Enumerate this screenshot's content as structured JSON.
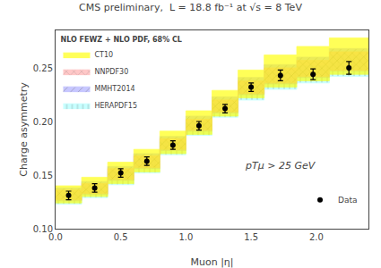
{
  "chart_data": {
    "type": "band",
    "title": "CMS preliminary,  L = 18.8 fb⁻¹ at √s = 8 TeV",
    "xlabel": "Muon |η|",
    "ylabel": "Charge asymmetry",
    "xlim": [
      0,
      2.4
    ],
    "ylim": [
      0.1,
      0.285
    ],
    "xticks": [
      {
        "value": 0,
        "label": "0.0"
      },
      0.5,
      {
        "value": 1.0,
        "label": "1.0"
      },
      1.5,
      {
        "value": 2.0,
        "label": "2.0"
      }
    ],
    "yticks": [
      {
        "value": 0.1,
        "label": "0.10"
      },
      0.15,
      {
        "value": 0.2,
        "label": "0.20"
      },
      0.25
    ],
    "grid": false,
    "legend": "upper left",
    "legend_title": "NLO FEWZ + NLO PDF, 68% CL",
    "annotations": [
      "pTμ > 25 GeV"
    ],
    "bins": [
      0.0,
      0.2,
      0.4,
      0.6,
      0.8,
      1.0,
      1.2,
      1.4,
      1.6,
      1.85,
      2.1,
      2.4
    ],
    "series": [
      {
        "name": "CT10",
        "color": "#ffff00",
        "lower": [
          0.124,
          0.13,
          0.142,
          0.153,
          0.17,
          0.188,
          0.205,
          0.222,
          0.232,
          0.238,
          0.244
        ],
        "upper": [
          0.14,
          0.148,
          0.162,
          0.174,
          0.191,
          0.21,
          0.229,
          0.248,
          0.262,
          0.27,
          0.278
        ]
      },
      {
        "name": "NNPDF30",
        "color": "#ffaaaa",
        "lower": [
          0.127,
          0.133,
          0.146,
          0.157,
          0.174,
          0.192,
          0.209,
          0.226,
          0.236,
          0.242,
          0.248
        ],
        "upper": [
          0.136,
          0.142,
          0.156,
          0.168,
          0.184,
          0.202,
          0.22,
          0.238,
          0.25,
          0.257,
          0.265
        ]
      },
      {
        "name": "MMHT2014",
        "color": "#aaaaff",
        "lower": [
          0.126,
          0.132,
          0.145,
          0.156,
          0.173,
          0.191,
          0.208,
          0.225,
          0.235,
          0.241,
          0.247
        ],
        "upper": [
          0.138,
          0.144,
          0.158,
          0.17,
          0.186,
          0.205,
          0.223,
          0.241,
          0.253,
          0.26,
          0.268
        ]
      },
      {
        "name": "HERAPDF15",
        "color": "#aaffff",
        "lower": [
          0.123,
          0.129,
          0.141,
          0.152,
          0.169,
          0.187,
          0.204,
          0.22,
          0.23,
          0.236,
          0.242
        ],
        "upper": [
          0.134,
          0.14,
          0.153,
          0.165,
          0.181,
          0.199,
          0.217,
          0.234,
          0.246,
          0.252,
          0.261
        ]
      },
      {
        "name": "Data",
        "type": "scatter",
        "marker": "circle",
        "color": "#000000",
        "x": [
          0.1,
          0.3,
          0.5,
          0.7,
          0.9,
          1.1,
          1.3,
          1.5,
          1.725,
          1.975,
          2.25
        ],
        "values": [
          0.131,
          0.138,
          0.152,
          0.163,
          0.178,
          0.196,
          0.212,
          0.232,
          0.243,
          0.244,
          0.25
        ],
        "errors": [
          0.004,
          0.004,
          0.004,
          0.004,
          0.004,
          0.004,
          0.004,
          0.004,
          0.005,
          0.005,
          0.006
        ]
      }
    ]
  }
}
